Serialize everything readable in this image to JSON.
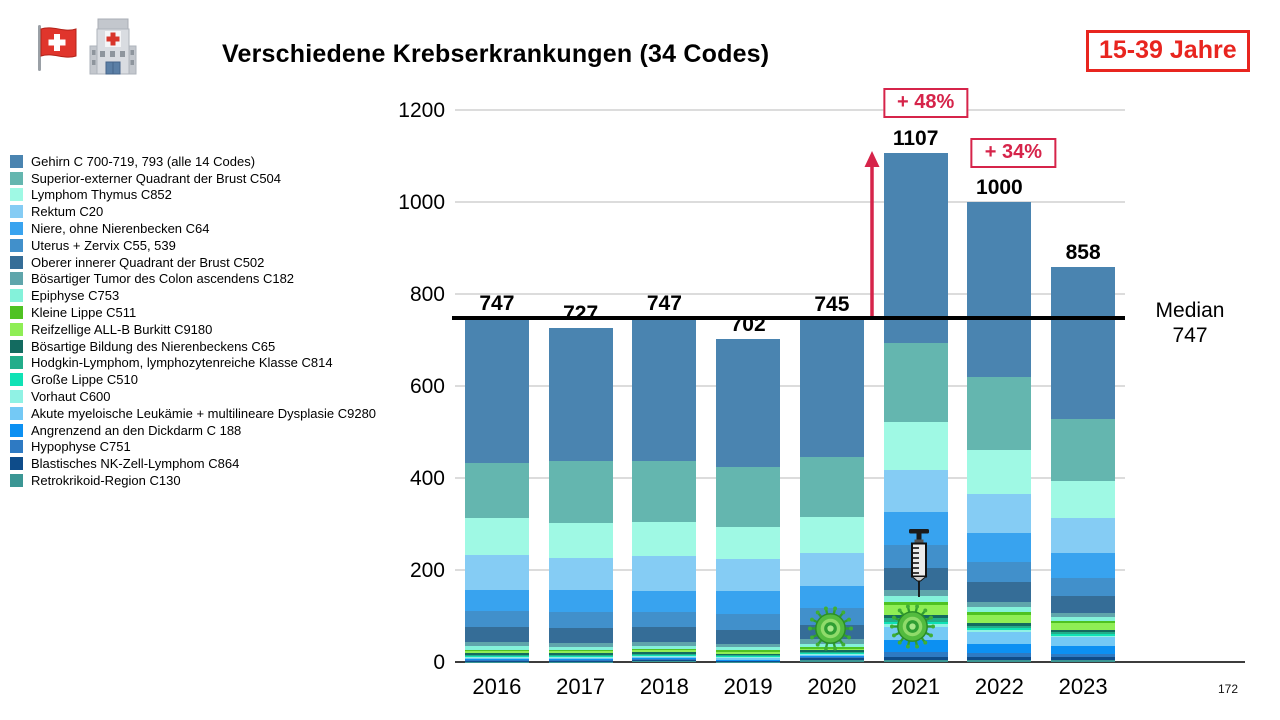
{
  "header": {
    "title": "Verschiedene Krebserkrankungen (34 Codes)",
    "age_badge": "15-39 Jahre",
    "icons": [
      "swiss-flag-icon",
      "hospital-icon"
    ]
  },
  "median": {
    "title": "Median",
    "value": "747"
  },
  "annotations": [
    {
      "text": "+ 48%",
      "year": "2021"
    },
    {
      "text": "+ 34%",
      "year": "2022"
    }
  ],
  "decorations": [
    {
      "icon": "virus-icon",
      "year": "2020"
    },
    {
      "icon": "virus-icon",
      "year": "2021"
    },
    {
      "icon": "syringe-icon",
      "year": "2021"
    }
  ],
  "page_number": "172",
  "colors": {
    "annotation_red": "#d6244a",
    "badge_red": "#e8251f",
    "median_line": "#000000",
    "gridline": "#dcdcdc"
  },
  "chart_data": {
    "type": "bar",
    "stacked": true,
    "title": "Verschiedene Krebserkrankungen (34 Codes)",
    "categories": [
      "2016",
      "2017",
      "2018",
      "2019",
      "2020",
      "2021",
      "2022",
      "2023"
    ],
    "totals": [
      747,
      727,
      747,
      702,
      745,
      1107,
      1000,
      858
    ],
    "median": 747,
    "ylim": [
      0,
      1200
    ],
    "yticks": [
      0,
      200,
      400,
      600,
      800,
      1000,
      1200
    ],
    "grid": true,
    "legend_position": "left",
    "xlabel": "",
    "ylabel": "",
    "series": [
      {
        "name": "Gehirn C 700-719, 793 (alle 14 Codes)",
        "color": "#4a84b0",
        "values": [
          315,
          290,
          310,
          278,
          300,
          414,
          380,
          330
        ]
      },
      {
        "name": "Superior-externer Quadrant der Brust C504",
        "color": "#64b6af",
        "values": [
          119,
          135,
          133,
          131,
          130,
          171,
          160,
          135
        ]
      },
      {
        "name": "Lymphom Thymus C852",
        "color": "#9ff9e4",
        "values": [
          80,
          75,
          74,
          70,
          78,
          104,
          95,
          80
        ]
      },
      {
        "name": "Rektum C20",
        "color": "#85ccf4",
        "values": [
          76,
          70,
          76,
          68,
          72,
          93,
          85,
          75
        ]
      },
      {
        "name": "Niere, ohne Nierenbecken C64",
        "color": "#38a3ef",
        "values": [
          46,
          48,
          45,
          50,
          48,
          70,
          62,
          55
        ]
      },
      {
        "name": "Uterus + Zervix C55, 539",
        "color": "#4190cb",
        "values": [
          35,
          36,
          34,
          35,
          36,
          50,
          45,
          40
        ]
      },
      {
        "name": "Oberer innerer Quadrant der Brust C502",
        "color": "#356d97",
        "values": [
          33,
          32,
          32,
          30,
          32,
          48,
          42,
          36
        ]
      },
      {
        "name": "Bösartiger Tumor des Colon ascendens C182",
        "color": "#5fa5ab",
        "values": [
          9,
          8,
          8,
          8,
          9,
          14,
          12,
          10
        ]
      },
      {
        "name": "Epiphyse C753",
        "color": "#84f2da",
        "values": [
          8,
          7,
          7,
          7,
          8,
          12,
          10,
          8
        ]
      },
      {
        "name": "Kleine Lippe C511",
        "color": "#4fc222",
        "values": [
          3,
          3,
          3,
          3,
          3,
          8,
          6,
          5
        ]
      },
      {
        "name": "Reifzellige ALL-B Burkitt C9180",
        "color": "#8fee55",
        "values": [
          4,
          4,
          4,
          4,
          4,
          20,
          18,
          14
        ]
      },
      {
        "name": "Bösartige Bildung des Nierenbeckens C65",
        "color": "#136b60",
        "values": [
          3,
          3,
          3,
          3,
          3,
          8,
          6,
          5
        ]
      },
      {
        "name": "Hodgkin-Lymphom, lymphozytenreiche Klasse C814",
        "color": "#22ad8a",
        "values": [
          3,
          3,
          3,
          3,
          3,
          8,
          6,
          5
        ]
      },
      {
        "name": "Große Lippe C510",
        "color": "#10e2b5",
        "values": [
          2,
          2,
          2,
          2,
          2,
          5,
          4,
          3
        ]
      },
      {
        "name": "Vorhaut C600",
        "color": "#90f2e4",
        "values": [
          2,
          2,
          2,
          2,
          2,
          5,
          4,
          3
        ]
      },
      {
        "name": "Akute myeloische Leukämie + multilineare Dysplasie C9280",
        "color": "#74c9f5",
        "values": [
          3,
          3,
          3,
          3,
          3,
          30,
          25,
          20
        ]
      },
      {
        "name": "Angrenzend an den Dickdarm C 188",
        "color": "#0c90f2",
        "values": [
          2,
          2,
          2,
          2,
          2,
          25,
          20,
          16
        ]
      },
      {
        "name": "Hypophyse C751",
        "color": "#2e7ac3",
        "values": [
          2,
          2,
          2,
          1,
          2,
          12,
          10,
          8
        ]
      },
      {
        "name": "Blastisches NK-Zell-Lymphom C864",
        "color": "#0e4c8a",
        "values": [
          1,
          1,
          2,
          1,
          4,
          5,
          5,
          5
        ]
      },
      {
        "name": "Retrokrikoid-Region C130",
        "color": "#3b9694",
        "values": [
          1,
          1,
          2,
          1,
          4,
          5,
          5,
          5
        ]
      }
    ]
  }
}
